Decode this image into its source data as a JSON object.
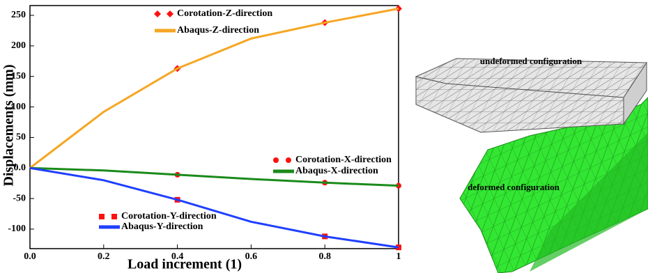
{
  "chart_data": {
    "type": "line",
    "x_label": "Load increment (1)",
    "y_label": "Displacements (mm)",
    "xlim": [
      0,
      1
    ],
    "ylim": [
      -132,
      266
    ],
    "xticks": [
      {
        "value": 0,
        "label": "0.0"
      },
      0.2,
      0.4,
      0.6,
      0.8,
      1.0
    ],
    "yticks": [
      -100,
      -50,
      {
        "value": 0,
        "label": "0.0"
      },
      50,
      100,
      150,
      200,
      250
    ],
    "grid": false,
    "series": [
      {
        "name": "Corotation-Z-direction",
        "color": "#ff1010",
        "marker": "diamond",
        "x": [
          0.4,
          0.8,
          1.0
        ],
        "values": [
          163,
          238,
          261
        ]
      },
      {
        "name": "Abaqus-Z-direction",
        "color": "#f5a623",
        "marker": "none",
        "x": [
          0,
          0.2,
          0.4,
          0.6,
          0.8,
          1.0
        ],
        "values": [
          0,
          92,
          163,
          212,
          238,
          261
        ]
      },
      {
        "name": "Corotation-X-direction",
        "color": "#ff1010",
        "marker": "circle",
        "x": [
          0.4,
          0.8,
          1.0
        ],
        "values": [
          -11,
          -24,
          -29
        ]
      },
      {
        "name": "Abaqus-X-direction",
        "color": "#1a8a1a",
        "marker": "none",
        "x": [
          0,
          0.2,
          0.4,
          0.6,
          0.8,
          1.0
        ],
        "values": [
          0,
          -4,
          -11,
          -18,
          -24,
          -29
        ]
      },
      {
        "name": "Corotation-Y-direction",
        "color": "#ff1010",
        "marker": "square",
        "x": [
          0.4,
          0.8,
          1.0
        ],
        "values": [
          -52,
          -112,
          -130
        ]
      },
      {
        "name": "Abaqus-Y-direction",
        "color": "#1f3fff",
        "marker": "none",
        "x": [
          0,
          0.2,
          0.4,
          0.6,
          0.8,
          1.0
        ],
        "values": [
          0,
          -20,
          -52,
          -88,
          -112,
          -130
        ]
      }
    ],
    "annotations": [
      "undeformed configuration",
      "deformed configuration"
    ]
  }
}
